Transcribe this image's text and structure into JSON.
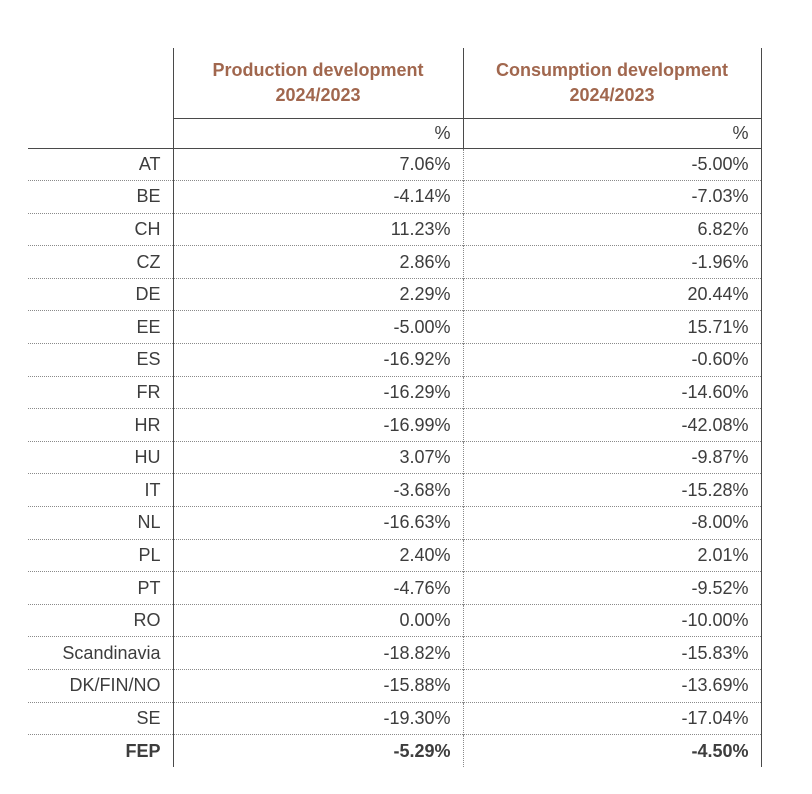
{
  "table": {
    "columns": [
      {
        "title": "Production development\n2024/2023",
        "unit": "%"
      },
      {
        "title": "Consumption development\n2024/2023",
        "unit": "%"
      }
    ],
    "rows": [
      {
        "label": "AT",
        "production": "7.06%",
        "consumption": "-5.00%"
      },
      {
        "label": "BE",
        "production": "-4.14%",
        "consumption": "-7.03%"
      },
      {
        "label": "CH",
        "production": "11.23%",
        "consumption": "6.82%"
      },
      {
        "label": "CZ",
        "production": "2.86%",
        "consumption": "-1.96%"
      },
      {
        "label": "DE",
        "production": "2.29%",
        "consumption": "20.44%"
      },
      {
        "label": "EE",
        "production": "-5.00%",
        "consumption": "15.71%"
      },
      {
        "label": "ES",
        "production": "-16.92%",
        "consumption": "-0.60%"
      },
      {
        "label": "FR",
        "production": "-16.29%",
        "consumption": "-14.60%"
      },
      {
        "label": "HR",
        "production": "-16.99%",
        "consumption": "-42.08%"
      },
      {
        "label": "HU",
        "production": "3.07%",
        "consumption": "-9.87%"
      },
      {
        "label": "IT",
        "production": "-3.68%",
        "consumption": "-15.28%"
      },
      {
        "label": "NL",
        "production": "-16.63%",
        "consumption": "-8.00%"
      },
      {
        "label": "PL",
        "production": "2.40%",
        "consumption": "2.01%"
      },
      {
        "label": "PT",
        "production": "-4.76%",
        "consumption": "-9.52%"
      },
      {
        "label": "RO",
        "production": "0.00%",
        "consumption": "-10.00%"
      },
      {
        "label": "Scandinavia",
        "production": "-18.82%",
        "consumption": "-15.83%"
      },
      {
        "label": "DK/FIN/NO",
        "production": "-15.88%",
        "consumption": "-13.69%"
      },
      {
        "label": "SE",
        "production": "-19.30%",
        "consumption": "-17.04%"
      },
      {
        "label": "FEP",
        "production": "-5.29%",
        "consumption": "-4.50%",
        "bold": true
      }
    ]
  },
  "colors": {
    "header_text": "#a1674e",
    "body_text": "#3d3d3d",
    "solid_line": "#4a4a4a",
    "dotted_line": "#8a8a8a"
  },
  "chart_data": {
    "type": "table",
    "title": "Production and consumption development 2024/2023",
    "categories": [
      "AT",
      "BE",
      "CH",
      "CZ",
      "DE",
      "EE",
      "ES",
      "FR",
      "HR",
      "HU",
      "IT",
      "NL",
      "PL",
      "PT",
      "RO",
      "Scandinavia",
      "DK/FIN/NO",
      "SE",
      "FEP"
    ],
    "series": [
      {
        "name": "Production development 2024/2023 (%)",
        "values": [
          7.06,
          -4.14,
          11.23,
          2.86,
          2.29,
          -5.0,
          -16.92,
          -16.29,
          -16.99,
          3.07,
          -3.68,
          -16.63,
          2.4,
          -4.76,
          0.0,
          -18.82,
          -15.88,
          -19.3,
          -5.29
        ]
      },
      {
        "name": "Consumption development 2024/2023 (%)",
        "values": [
          -5.0,
          -7.03,
          6.82,
          -1.96,
          20.44,
          15.71,
          -0.6,
          -14.6,
          -42.08,
          -9.87,
          -15.28,
          -8.0,
          2.01,
          -9.52,
          -10.0,
          -15.83,
          -13.69,
          -17.04,
          -4.5
        ]
      }
    ]
  }
}
